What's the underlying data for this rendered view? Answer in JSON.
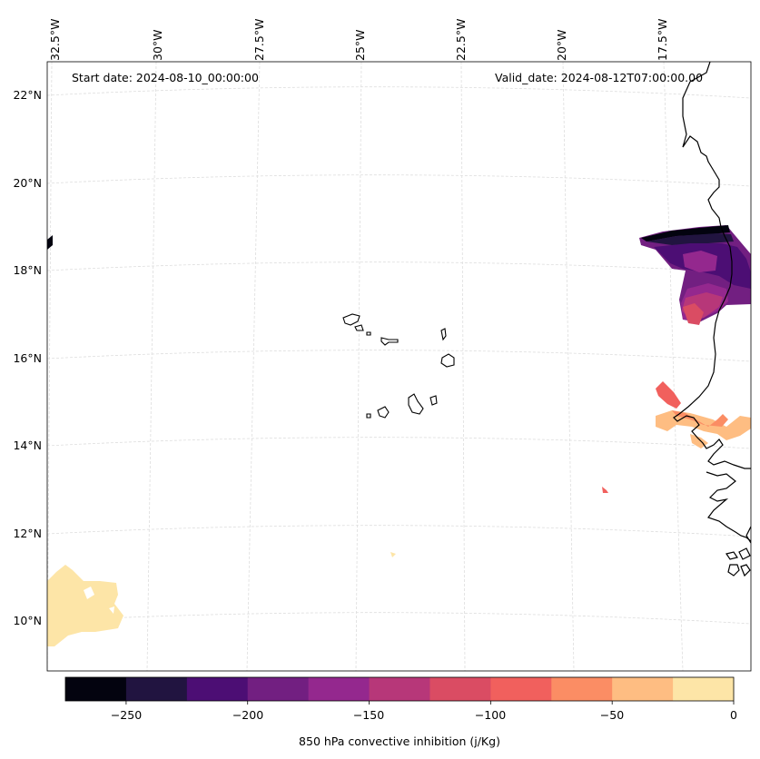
{
  "map": {
    "start_date": "Start date: 2024-08-10_00:00:00",
    "valid_date": "Valid_date: 2024-08-12T07:00:00.00",
    "lon_labels": [
      "32.5°W",
      "30°W",
      "27.5°W",
      "25°W",
      "22.5°W",
      "20°W",
      "17.5°W"
    ],
    "lat_labels": [
      "22°N",
      "20°N",
      "18°N",
      "16°N",
      "14°N",
      "12°N",
      "10°N"
    ],
    "gridline_color": "#dddddd",
    "coastline_color": "#000000"
  },
  "colorbar": {
    "label": "850 hPa convective inhibition (j/Kg)",
    "tick_labels": [
      "−250",
      "−200",
      "−150",
      "−100",
      "−50",
      "0"
    ],
    "tick_values": [
      -250,
      -200,
      -150,
      -100,
      -50,
      0
    ],
    "levels": [
      -275,
      -250,
      -225,
      -200,
      -175,
      -150,
      -125,
      -100,
      -75,
      -50,
      -25,
      0
    ],
    "colors": [
      "#03030f",
      "#211440",
      "#4c0e74",
      "#721f81",
      "#94288e",
      "#b73779",
      "#da4c63",
      "#f1605d",
      "#fb8d64",
      "#febd82",
      "#fde5a7"
    ]
  }
}
